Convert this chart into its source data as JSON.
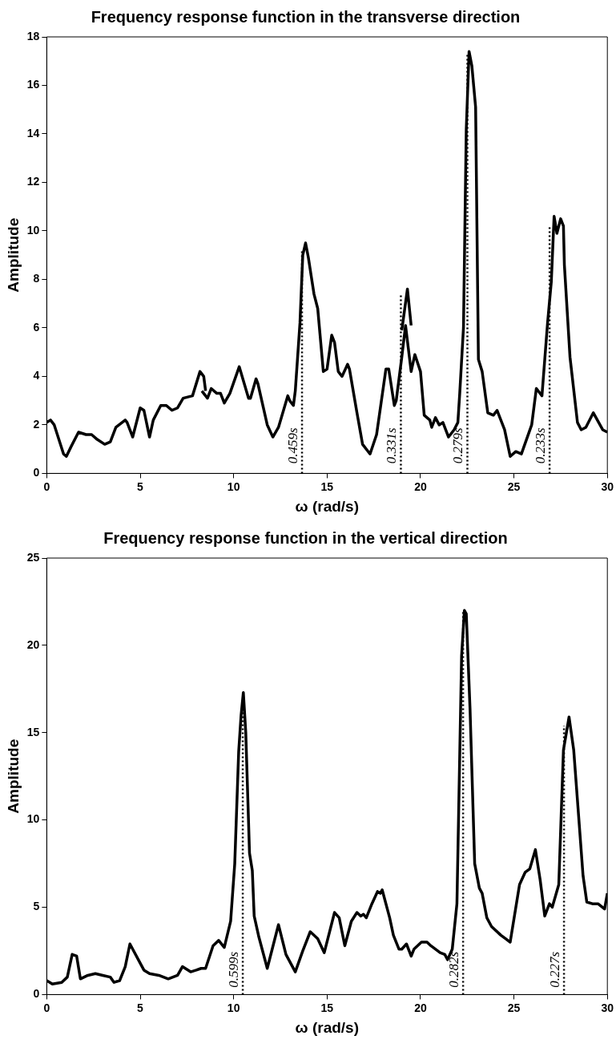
{
  "chart_data": [
    {
      "type": "line",
      "title": "Frequency response function in the transverse direction",
      "xlabel": "ω (rad/s)",
      "ylabel": "Amplitude",
      "xlim": [
        0,
        30
      ],
      "xticks": [
        0,
        5,
        10,
        15,
        20,
        25,
        30
      ],
      "ylim": [
        0,
        18
      ],
      "yticks": [
        0,
        2,
        4,
        6,
        8,
        10,
        12,
        14,
        16,
        18
      ],
      "legend": false,
      "grid": false,
      "series": [
        {
          "color": "#000000",
          "line_style": "solid",
          "x": [
            0,
            0.2,
            0.4,
            0.9,
            1.05,
            1.3,
            1.7,
            2.1,
            2.4,
            2.7,
            3.1,
            3.4,
            3.7,
            4.2,
            4.3,
            4.6,
            5.0,
            5.2,
            5.5,
            5.7,
            6.1,
            6.4,
            6.7,
            7.0,
            7.3,
            7.8,
            8.2,
            8.4,
            8.5
          ],
          "values": [
            2.1,
            2.2,
            2.0,
            0.8,
            0.7,
            1.1,
            1.7,
            1.6,
            1.6,
            1.4,
            1.2,
            1.3,
            1.9,
            2.2,
            2.1,
            1.5,
            2.7,
            2.6,
            1.5,
            2.2,
            2.8,
            2.8,
            2.6,
            2.7,
            3.1,
            3.2,
            4.2,
            4.0,
            3.4
          ]
        },
        {
          "color": "#000000",
          "line_style": "solid",
          "x": [
            8.3,
            8.6,
            8.8,
            9.1,
            9.3,
            9.5,
            9.8,
            10.3,
            10.8,
            10.9,
            11.2,
            11.3,
            11.8,
            12.1,
            12.4,
            12.9,
            13.0,
            13.2,
            13.3,
            13.55,
            13.7,
            13.85,
            14.0,
            14.2,
            14.3,
            14.5,
            14.8,
            15.0,
            15.25,
            15.4,
            15.6,
            15.8,
            16.1,
            16.2,
            16.6,
            16.9,
            17.3,
            17.65,
            18.15,
            18.3,
            18.6,
            18.7,
            19.0,
            19.2,
            19.5,
            19.7,
            20.0,
            20.2,
            20.5,
            20.6,
            20.8,
            21.0,
            21.2,
            21.5,
            21.8,
            22.0,
            22.1,
            22.3,
            22.45,
            22.6,
            22.75,
            22.95,
            23.1,
            23.3,
            23.6,
            23.9,
            24.1,
            24.5,
            24.8,
            25.1,
            25.4,
            25.95,
            26.2,
            26.5,
            26.8,
            27.0,
            27.15,
            27.3,
            27.5,
            27.65,
            27.7,
            28.0,
            28.4,
            28.6,
            28.85,
            29.25,
            29.75,
            30.0
          ],
          "values": [
            3.4,
            3.1,
            3.5,
            3.3,
            3.3,
            2.9,
            3.3,
            4.4,
            3.1,
            3.1,
            3.9,
            3.7,
            2.0,
            1.5,
            1.9,
            3.2,
            3.0,
            2.8,
            3.4,
            6.2,
            9.0,
            9.5,
            8.9,
            7.9,
            7.4,
            6.8,
            4.2,
            4.3,
            5.7,
            5.4,
            4.2,
            4.0,
            4.5,
            4.3,
            2.5,
            1.2,
            0.8,
            1.6,
            4.3,
            4.3,
            2.8,
            3.0,
            4.8,
            6.1,
            4.2,
            4.9,
            4.2,
            2.4,
            2.2,
            1.9,
            2.3,
            2.0,
            2.1,
            1.5,
            1.8,
            2.1,
            3.3,
            6.0,
            14.2,
            17.4,
            16.8,
            15.1,
            4.7,
            4.2,
            2.5,
            2.4,
            2.6,
            1.8,
            0.7,
            0.9,
            0.8,
            2.0,
            3.5,
            3.2,
            6.2,
            7.9,
            10.6,
            9.9,
            10.5,
            10.2,
            8.6,
            4.8,
            2.1,
            1.8,
            1.9,
            2.5,
            1.8,
            1.7
          ]
        },
        {
          "color": "#000000",
          "line_style": "solid",
          "x": [
            19.0,
            19.3,
            19.5
          ],
          "values": [
            5.9,
            7.6,
            6.1
          ]
        },
        {
          "color": "#000000",
          "line_style": "dotted",
          "x": [
            13.66,
            13.66
          ],
          "values": [
            0,
            9.2
          ]
        },
        {
          "color": "#000000",
          "line_style": "dotted",
          "x": [
            18.95,
            18.95
          ],
          "values": [
            0,
            7.4
          ]
        },
        {
          "color": "#000000",
          "line_style": "dotted",
          "x": [
            22.51,
            22.51
          ],
          "values": [
            0,
            17.3
          ]
        },
        {
          "color": "#000000",
          "line_style": "dotted",
          "x": [
            26.91,
            26.91
          ],
          "values": [
            0,
            10.2
          ]
        }
      ],
      "annotations": [
        {
          "text": "0.459s",
          "x": 13.66,
          "y": 0.4
        },
        {
          "text": "0.331s",
          "x": 18.95,
          "y": 0.4
        },
        {
          "text": "0.279s",
          "x": 22.51,
          "y": 0.4
        },
        {
          "text": "0.233s",
          "x": 26.91,
          "y": 0.4
        }
      ]
    },
    {
      "type": "line",
      "title": "Frequency response function in the vertical direction",
      "xlabel": "ω (rad/s)",
      "ylabel": "Amplitude",
      "xlim": [
        0,
        30
      ],
      "xticks": [
        0,
        5,
        10,
        15,
        20,
        25,
        30
      ],
      "ylim": [
        0,
        25
      ],
      "yticks": [
        0,
        5,
        10,
        15,
        20,
        25
      ],
      "legend": false,
      "grid": false,
      "series": [
        {
          "color": "#000000",
          "line_style": "solid",
          "x": [
            0,
            0.3,
            0.8,
            1.1,
            1.36,
            1.6,
            1.8,
            2.2,
            2.6,
            3.0,
            3.4,
            3.6,
            3.9,
            4.2,
            4.45,
            4.9,
            5.2,
            5.5,
            6.0,
            6.5,
            7.0,
            7.26,
            7.7,
            8.0,
            8.26,
            8.5,
            8.9,
            9.2,
            9.5,
            9.84,
            10.06,
            10.27,
            10.4,
            10.52,
            10.65,
            10.85,
            11.0,
            11.1,
            11.35,
            11.8,
            12.4,
            12.8,
            13.3,
            13.7,
            14.1,
            14.5,
            14.85,
            15.4,
            15.65,
            15.95,
            16.3,
            16.6,
            16.8,
            16.95,
            17.1,
            17.4,
            17.7,
            17.85,
            17.95,
            18.35,
            18.55,
            18.85,
            19.0,
            19.25,
            19.5,
            19.65,
            20.05,
            20.35,
            20.55,
            21.05,
            21.3,
            21.45,
            21.7,
            21.95,
            22.2,
            22.35,
            22.45,
            22.65,
            22.9,
            23.15,
            23.3,
            23.55,
            23.8,
            24.3,
            24.55,
            24.8,
            25.3,
            25.6,
            25.85,
            26.15,
            26.4,
            26.65,
            26.9,
            27.05,
            27.4,
            27.65,
            27.95,
            28.2,
            28.7,
            28.9,
            29.2,
            29.5,
            29.85,
            30.0
          ],
          "values": [
            0.8,
            0.6,
            0.7,
            1.0,
            2.3,
            2.2,
            0.9,
            1.1,
            1.2,
            1.1,
            1.0,
            0.7,
            0.8,
            1.6,
            2.9,
            2.0,
            1.4,
            1.2,
            1.1,
            0.9,
            1.1,
            1.6,
            1.3,
            1.4,
            1.5,
            1.5,
            2.8,
            3.1,
            2.7,
            4.2,
            7.5,
            13.9,
            16.0,
            17.3,
            15.0,
            8.1,
            7.1,
            4.5,
            3.3,
            1.5,
            4.0,
            2.3,
            1.3,
            2.5,
            3.6,
            3.2,
            2.4,
            4.7,
            4.4,
            2.8,
            4.2,
            4.7,
            4.5,
            4.6,
            4.4,
            5.2,
            5.9,
            5.8,
            6.0,
            4.4,
            3.4,
            2.6,
            2.6,
            2.9,
            2.2,
            2.6,
            3.0,
            3.0,
            2.8,
            2.4,
            2.3,
            2.0,
            2.6,
            5.2,
            19.4,
            22.0,
            21.8,
            16.4,
            7.5,
            6.1,
            5.8,
            4.4,
            3.9,
            3.4,
            3.2,
            3.0,
            6.3,
            7.0,
            7.2,
            8.3,
            6.6,
            4.5,
            5.2,
            5.0,
            6.3,
            14.0,
            15.9,
            14.0,
            6.8,
            5.3,
            5.2,
            5.2,
            4.9,
            5.8
          ]
        },
        {
          "color": "#000000",
          "line_style": "dotted",
          "x": [
            10.49,
            10.49
          ],
          "values": [
            0,
            17.0
          ]
        },
        {
          "color": "#000000",
          "line_style": "dotted",
          "x": [
            22.28,
            22.28
          ],
          "values": [
            0,
            21.9
          ]
        },
        {
          "color": "#000000",
          "line_style": "dotted",
          "x": [
            27.68,
            27.68
          ],
          "values": [
            0,
            15.4
          ]
        }
      ],
      "annotations": [
        {
          "text": "0.599s",
          "x": 10.49,
          "y": 0.4
        },
        {
          "text": "0.282s",
          "x": 22.28,
          "y": 0.4
        },
        {
          "text": "0.227s",
          "x": 27.68,
          "y": 0.4
        }
      ]
    }
  ]
}
